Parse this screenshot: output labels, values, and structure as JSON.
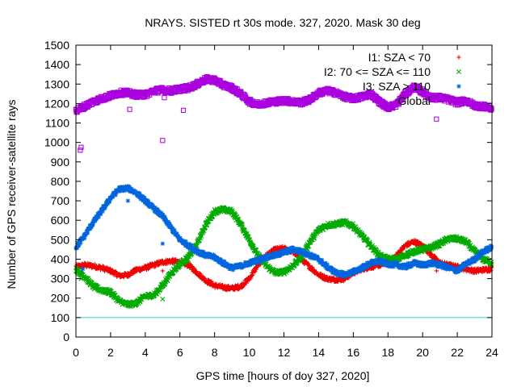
{
  "chart_data": {
    "type": "scatter",
    "title": "NRAYS. SISTED rt 30s mode. 327, 2020. Mask 30 deg",
    "xlabel": "GPS time [hours of doy 327, 2020]",
    "ylabel": "Number of GPS receiver-satellite rays",
    "xlim": [
      0,
      24
    ],
    "ylim": [
      0,
      1500
    ],
    "x_ticks": [
      0,
      2,
      4,
      6,
      8,
      10,
      12,
      14,
      16,
      18,
      20,
      22,
      24
    ],
    "y_ticks": [
      0,
      100,
      200,
      300,
      400,
      500,
      600,
      700,
      800,
      900,
      1000,
      1100,
      1200,
      1300,
      1400,
      1500
    ],
    "grid": false,
    "legend_position": "top-right",
    "threshold_line": {
      "y": 100,
      "color": "#33cccc"
    },
    "series": [
      {
        "name": "I1: SZA < 70",
        "marker": "+",
        "color": "#ee0000",
        "points": [
          [
            0,
            360
          ],
          [
            0.5,
            370
          ],
          [
            1,
            365
          ],
          [
            1.5,
            355
          ],
          [
            2,
            340
          ],
          [
            2.5,
            315
          ],
          [
            3,
            320
          ],
          [
            3.5,
            345
          ],
          [
            4,
            355
          ],
          [
            4.5,
            370
          ],
          [
            5,
            385
          ],
          [
            5.5,
            390
          ],
          [
            6,
            385
          ],
          [
            6.5,
            370
          ],
          [
            7,
            330
          ],
          [
            7.5,
            290
          ],
          [
            8,
            265
          ],
          [
            8.5,
            255
          ],
          [
            9,
            250
          ],
          [
            9.5,
            260
          ],
          [
            10,
            300
          ],
          [
            10.5,
            370
          ],
          [
            11,
            420
          ],
          [
            11.5,
            450
          ],
          [
            12,
            455
          ],
          [
            12.5,
            440
          ],
          [
            13,
            400
          ],
          [
            13.5,
            360
          ],
          [
            14,
            320
          ],
          [
            14.5,
            300
          ],
          [
            15,
            295
          ],
          [
            15.5,
            300
          ],
          [
            16,
            330
          ],
          [
            16.5,
            350
          ],
          [
            17,
            360
          ],
          [
            17.5,
            370
          ],
          [
            18,
            380
          ],
          [
            18.5,
            420
          ],
          [
            19,
            470
          ],
          [
            19.5,
            490
          ],
          [
            20,
            470
          ],
          [
            20.5,
            420
          ],
          [
            21,
            380
          ],
          [
            21.5,
            370
          ],
          [
            22,
            360
          ],
          [
            22.5,
            350
          ],
          [
            23,
            340
          ],
          [
            23.5,
            345
          ],
          [
            24,
            350
          ]
        ],
        "outliers": [
          [
            0.35,
            330
          ],
          [
            5,
            340
          ],
          [
            20.8,
            340
          ]
        ]
      },
      {
        "name": "I2: 70 <= SZA <= 110",
        "marker": "x",
        "color": "#00aa00",
        "points": [
          [
            0,
            350
          ],
          [
            0.5,
            310
          ],
          [
            1,
            260
          ],
          [
            1.5,
            240
          ],
          [
            2,
            230
          ],
          [
            2.5,
            185
          ],
          [
            3,
            165
          ],
          [
            3.5,
            175
          ],
          [
            4,
            210
          ],
          [
            4.5,
            215
          ],
          [
            5,
            265
          ],
          [
            5.5,
            330
          ],
          [
            6,
            375
          ],
          [
            6.5,
            410
          ],
          [
            7,
            480
          ],
          [
            7.5,
            580
          ],
          [
            8,
            645
          ],
          [
            8.5,
            655
          ],
          [
            9,
            645
          ],
          [
            9.5,
            580
          ],
          [
            10,
            500
          ],
          [
            10.5,
            420
          ],
          [
            11,
            365
          ],
          [
            11.5,
            330
          ],
          [
            12,
            335
          ],
          [
            12.5,
            365
          ],
          [
            13,
            410
          ],
          [
            13.5,
            490
          ],
          [
            14,
            550
          ],
          [
            14.5,
            575
          ],
          [
            15,
            580
          ],
          [
            15.5,
            590
          ],
          [
            16,
            570
          ],
          [
            16.5,
            520
          ],
          [
            17,
            470
          ],
          [
            17.5,
            420
          ],
          [
            18,
            400
          ],
          [
            18.5,
            400
          ],
          [
            19,
            420
          ],
          [
            19.5,
            440
          ],
          [
            20,
            450
          ],
          [
            20.5,
            460
          ],
          [
            21,
            480
          ],
          [
            21.5,
            505
          ],
          [
            22,
            505
          ],
          [
            22.5,
            490
          ],
          [
            23,
            440
          ],
          [
            23.5,
            400
          ],
          [
            24,
            380
          ]
        ],
        "outliers": [
          [
            0.3,
            300
          ],
          [
            5,
            195
          ]
        ]
      },
      {
        "name": "I3: SZA > 110",
        "marker": "*",
        "color": "#0066dd",
        "points": [
          [
            0,
            460
          ],
          [
            0.5,
            520
          ],
          [
            1,
            590
          ],
          [
            1.5,
            650
          ],
          [
            2,
            715
          ],
          [
            2.5,
            760
          ],
          [
            3,
            765
          ],
          [
            3.5,
            740
          ],
          [
            4,
            700
          ],
          [
            4.5,
            660
          ],
          [
            5,
            620
          ],
          [
            5.5,
            560
          ],
          [
            6,
            500
          ],
          [
            6.5,
            470
          ],
          [
            7,
            440
          ],
          [
            7.5,
            420
          ],
          [
            8,
            410
          ],
          [
            8.5,
            380
          ],
          [
            9,
            355
          ],
          [
            9.5,
            365
          ],
          [
            10,
            380
          ],
          [
            10.5,
            395
          ],
          [
            11,
            410
          ],
          [
            11.5,
            420
          ],
          [
            12,
            435
          ],
          [
            12.5,
            450
          ],
          [
            13,
            440
          ],
          [
            13.5,
            420
          ],
          [
            14,
            400
          ],
          [
            14.5,
            360
          ],
          [
            15,
            330
          ],
          [
            15.5,
            320
          ],
          [
            16,
            335
          ],
          [
            16.5,
            355
          ],
          [
            17,
            380
          ],
          [
            17.5,
            390
          ],
          [
            18,
            375
          ],
          [
            18.5,
            370
          ],
          [
            19,
            360
          ],
          [
            19.5,
            380
          ],
          [
            20,
            370
          ],
          [
            20.5,
            380
          ],
          [
            21,
            370
          ],
          [
            21.5,
            355
          ],
          [
            22,
            340
          ],
          [
            22.5,
            375
          ],
          [
            23,
            400
          ],
          [
            23.5,
            440
          ],
          [
            24,
            460
          ]
        ],
        "outliers": [
          [
            0.4,
            350
          ],
          [
            3,
            700
          ],
          [
            5,
            480
          ]
        ]
      },
      {
        "name": "Global",
        "marker": "square",
        "color": "#aa00dd",
        "points": [
          [
            0,
            1165
          ],
          [
            0.5,
            1185
          ],
          [
            1,
            1210
          ],
          [
            1.5,
            1225
          ],
          [
            2,
            1240
          ],
          [
            2.5,
            1255
          ],
          [
            3,
            1255
          ],
          [
            3.5,
            1245
          ],
          [
            4,
            1245
          ],
          [
            4.5,
            1265
          ],
          [
            5,
            1270
          ],
          [
            5.5,
            1265
          ],
          [
            6,
            1275
          ],
          [
            6.5,
            1280
          ],
          [
            7,
            1300
          ],
          [
            7.5,
            1325
          ],
          [
            8,
            1320
          ],
          [
            8.5,
            1295
          ],
          [
            9,
            1280
          ],
          [
            9.5,
            1250
          ],
          [
            10,
            1210
          ],
          [
            10.5,
            1195
          ],
          [
            11,
            1205
          ],
          [
            11.5,
            1210
          ],
          [
            12,
            1215
          ],
          [
            12.5,
            1210
          ],
          [
            13,
            1205
          ],
          [
            13.5,
            1220
          ],
          [
            14,
            1255
          ],
          [
            14.5,
            1265
          ],
          [
            15,
            1255
          ],
          [
            15.5,
            1235
          ],
          [
            16,
            1225
          ],
          [
            16.5,
            1235
          ],
          [
            17,
            1250
          ],
          [
            17.5,
            1210
          ],
          [
            18,
            1180
          ],
          [
            18.5,
            1195
          ],
          [
            19,
            1250
          ],
          [
            19.5,
            1285
          ],
          [
            20,
            1260
          ],
          [
            20.5,
            1230
          ],
          [
            21,
            1230
          ],
          [
            21.5,
            1220
          ],
          [
            22,
            1205
          ],
          [
            22.5,
            1215
          ],
          [
            23,
            1190
          ],
          [
            23.5,
            1185
          ],
          [
            24,
            1175
          ]
        ],
        "outliers": [
          [
            0.25,
            960
          ],
          [
            0.3,
            975
          ],
          [
            3.1,
            1170
          ],
          [
            5,
            1010
          ],
          [
            6.2,
            1165
          ],
          [
            20.8,
            1120
          ],
          [
            5.1,
            1230
          ]
        ]
      }
    ]
  }
}
